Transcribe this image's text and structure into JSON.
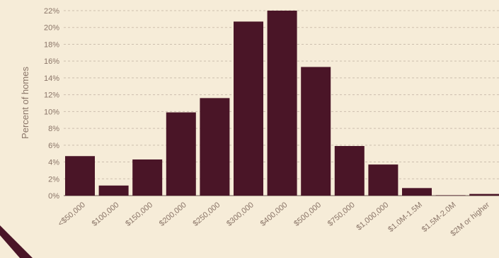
{
  "chart_data": {
    "type": "bar",
    "title": "",
    "xlabel": "",
    "ylabel": "Percent of homes",
    "ylim": [
      0,
      22
    ],
    "yticks": [
      "0%",
      "2%",
      "4%",
      "6%",
      "8%",
      "10%",
      "12%",
      "14%",
      "16%",
      "18%",
      "20%",
      "22%"
    ],
    "grid": true,
    "categories": [
      "<$50,000",
      "$100,000",
      "$150,000",
      "$200,000",
      "$250,000",
      "$300,000",
      "$400,000",
      "$500,000",
      "$750,000",
      "$1,000,000",
      "$1.0M-1.5M",
      "$1.5M-2.0M",
      "$2M or higher"
    ],
    "values": [
      4.7,
      1.2,
      4.3,
      9.9,
      11.6,
      20.7,
      22.0,
      15.3,
      5.9,
      3.7,
      0.9,
      0.05,
      0.2
    ],
    "bar_color": "#4a1527"
  },
  "decor": {
    "stroke_color": "#4a1527"
  }
}
